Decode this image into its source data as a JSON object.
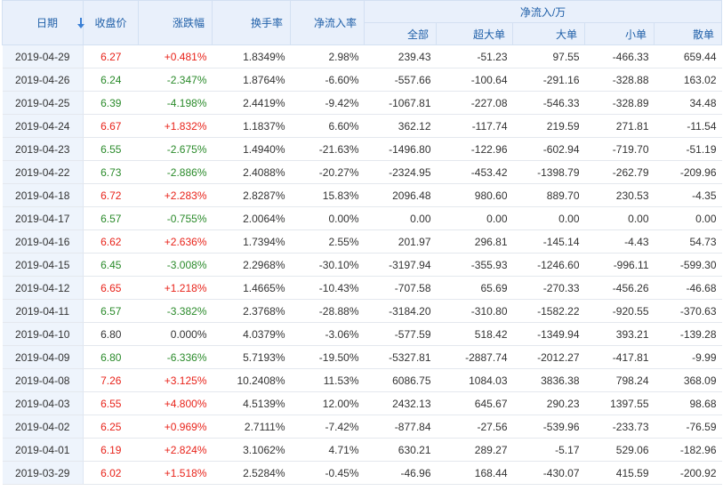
{
  "colors": {
    "up": "#e8231a",
    "down": "#2a8a2a",
    "header_text": "#1f5fa8",
    "header_bg": "#e9f0fb",
    "date_bg": "#eef4fc"
  },
  "header": {
    "date": "日期",
    "sort_icon": "arrow-down-icon",
    "close": "收盘价",
    "change": "涨跌幅",
    "turnover": "换手率",
    "net_ratio": "净流入率",
    "net_group": "净流入/万",
    "all": "全部",
    "super": "超大单",
    "large": "大单",
    "small": "小单",
    "retail": "散单"
  },
  "rows": [
    {
      "date": "2019-04-29",
      "close": "6.27",
      "change": "+0.481%",
      "dir": "up",
      "turnover": "1.8349%",
      "ratio": "2.98%",
      "all": "239.43",
      "super": "-51.23",
      "large": "97.55",
      "small": "-466.33",
      "retail": "659.44"
    },
    {
      "date": "2019-04-26",
      "close": "6.24",
      "change": "-2.347%",
      "dir": "down",
      "turnover": "1.8764%",
      "ratio": "-6.60%",
      "all": "-557.66",
      "super": "-100.64",
      "large": "-291.16",
      "small": "-328.88",
      "retail": "163.02"
    },
    {
      "date": "2019-04-25",
      "close": "6.39",
      "change": "-4.198%",
      "dir": "down",
      "turnover": "2.4419%",
      "ratio": "-9.42%",
      "all": "-1067.81",
      "super": "-227.08",
      "large": "-546.33",
      "small": "-328.89",
      "retail": "34.48"
    },
    {
      "date": "2019-04-24",
      "close": "6.67",
      "change": "+1.832%",
      "dir": "up",
      "turnover": "1.1837%",
      "ratio": "6.60%",
      "all": "362.12",
      "super": "-117.74",
      "large": "219.59",
      "small": "271.81",
      "retail": "-11.54"
    },
    {
      "date": "2019-04-23",
      "close": "6.55",
      "change": "-2.675%",
      "dir": "down",
      "turnover": "1.4940%",
      "ratio": "-21.63%",
      "all": "-1496.80",
      "super": "-122.96",
      "large": "-602.94",
      "small": "-719.70",
      "retail": "-51.19"
    },
    {
      "date": "2019-04-22",
      "close": "6.73",
      "change": "-2.886%",
      "dir": "down",
      "turnover": "2.4088%",
      "ratio": "-20.27%",
      "all": "-2324.95",
      "super": "-453.42",
      "large": "-1398.79",
      "small": "-262.79",
      "retail": "-209.96"
    },
    {
      "date": "2019-04-18",
      "close": "6.72",
      "change": "+2.283%",
      "dir": "up",
      "turnover": "2.8287%",
      "ratio": "15.83%",
      "all": "2096.48",
      "super": "980.60",
      "large": "889.70",
      "small": "230.53",
      "retail": "-4.35"
    },
    {
      "date": "2019-04-17",
      "close": "6.57",
      "change": "-0.755%",
      "dir": "down",
      "turnover": "2.0064%",
      "ratio": "0.00%",
      "all": "0.00",
      "super": "0.00",
      "large": "0.00",
      "small": "0.00",
      "retail": "0.00"
    },
    {
      "date": "2019-04-16",
      "close": "6.62",
      "change": "+2.636%",
      "dir": "up",
      "turnover": "1.7394%",
      "ratio": "2.55%",
      "all": "201.97",
      "super": "296.81",
      "large": "-145.14",
      "small": "-4.43",
      "retail": "54.73"
    },
    {
      "date": "2019-04-15",
      "close": "6.45",
      "change": "-3.008%",
      "dir": "down",
      "turnover": "2.2968%",
      "ratio": "-30.10%",
      "all": "-3197.94",
      "super": "-355.93",
      "large": "-1246.60",
      "small": "-996.11",
      "retail": "-599.30"
    },
    {
      "date": "2019-04-12",
      "close": "6.65",
      "change": "+1.218%",
      "dir": "up",
      "turnover": "1.4665%",
      "ratio": "-10.43%",
      "all": "-707.58",
      "super": "65.69",
      "large": "-270.33",
      "small": "-456.26",
      "retail": "-46.68"
    },
    {
      "date": "2019-04-11",
      "close": "6.57",
      "change": "-3.382%",
      "dir": "down",
      "turnover": "2.3768%",
      "ratio": "-28.88%",
      "all": "-3184.20",
      "super": "-310.80",
      "large": "-1582.22",
      "small": "-920.55",
      "retail": "-370.63"
    },
    {
      "date": "2019-04-10",
      "close": "6.80",
      "change": "0.000%",
      "dir": "flat",
      "turnover": "4.0379%",
      "ratio": "-3.06%",
      "all": "-577.59",
      "super": "518.42",
      "large": "-1349.94",
      "small": "393.21",
      "retail": "-139.28"
    },
    {
      "date": "2019-04-09",
      "close": "6.80",
      "change": "-6.336%",
      "dir": "down",
      "turnover": "5.7193%",
      "ratio": "-19.50%",
      "all": "-5327.81",
      "super": "-2887.74",
      "large": "-2012.27",
      "small": "-417.81",
      "retail": "-9.99"
    },
    {
      "date": "2019-04-08",
      "close": "7.26",
      "change": "+3.125%",
      "dir": "up",
      "turnover": "10.2408%",
      "ratio": "11.53%",
      "all": "6086.75",
      "super": "1084.03",
      "large": "3836.38",
      "small": "798.24",
      "retail": "368.09"
    },
    {
      "date": "2019-04-03",
      "close": "6.55",
      "change": "+4.800%",
      "dir": "up",
      "turnover": "4.5139%",
      "ratio": "12.00%",
      "all": "2432.13",
      "super": "645.67",
      "large": "290.23",
      "small": "1397.55",
      "retail": "98.68"
    },
    {
      "date": "2019-04-02",
      "close": "6.25",
      "change": "+0.969%",
      "dir": "up",
      "turnover": "2.7111%",
      "ratio": "-7.42%",
      "all": "-877.84",
      "super": "-27.56",
      "large": "-539.96",
      "small": "-233.73",
      "retail": "-76.59"
    },
    {
      "date": "2019-04-01",
      "close": "6.19",
      "change": "+2.824%",
      "dir": "up",
      "turnover": "3.1062%",
      "ratio": "4.71%",
      "all": "630.21",
      "super": "289.27",
      "large": "-5.17",
      "small": "529.06",
      "retail": "-182.96"
    },
    {
      "date": "2019-03-29",
      "close": "6.02",
      "change": "+1.518%",
      "dir": "up",
      "turnover": "2.5284%",
      "ratio": "-0.45%",
      "all": "-46.96",
      "super": "168.44",
      "large": "-430.07",
      "small": "415.59",
      "retail": "-200.92"
    }
  ]
}
